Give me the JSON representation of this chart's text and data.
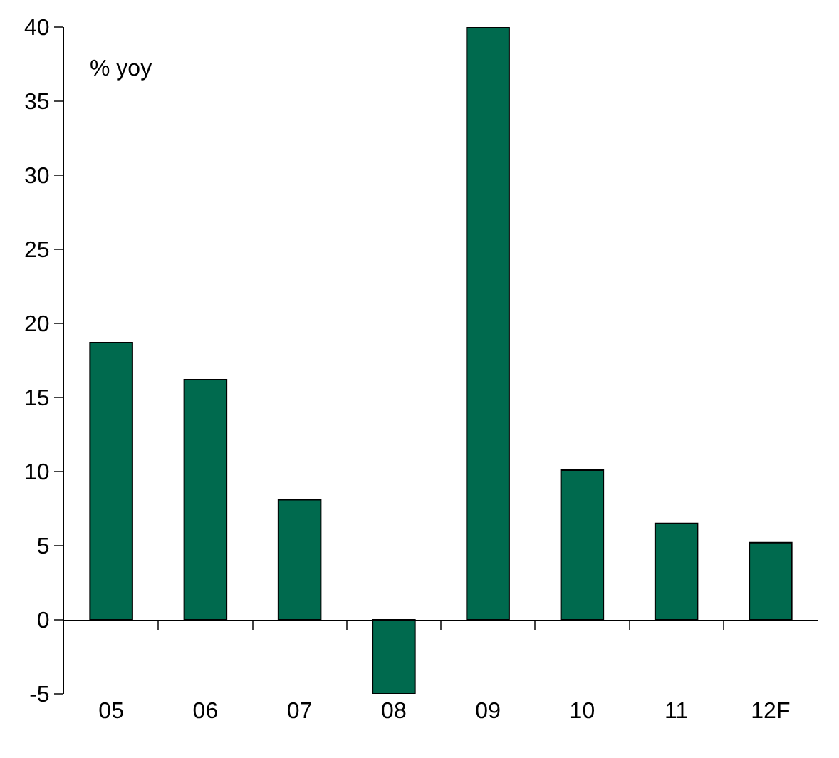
{
  "chart_data": {
    "type": "bar",
    "categories": [
      "05",
      "06",
      "07",
      "08",
      "09",
      "10",
      "11",
      "12F"
    ],
    "values": [
      18.7,
      16.2,
      8.1,
      -5,
      40,
      10.1,
      6.5,
      5.2
    ],
    "color": "#006a4e",
    "ylim": [
      -5,
      40
    ],
    "yticks": [
      -5,
      0,
      5,
      10,
      15,
      20,
      25,
      30,
      35,
      40
    ],
    "annotations": [
      "% yoy"
    ],
    "legend": false
  }
}
